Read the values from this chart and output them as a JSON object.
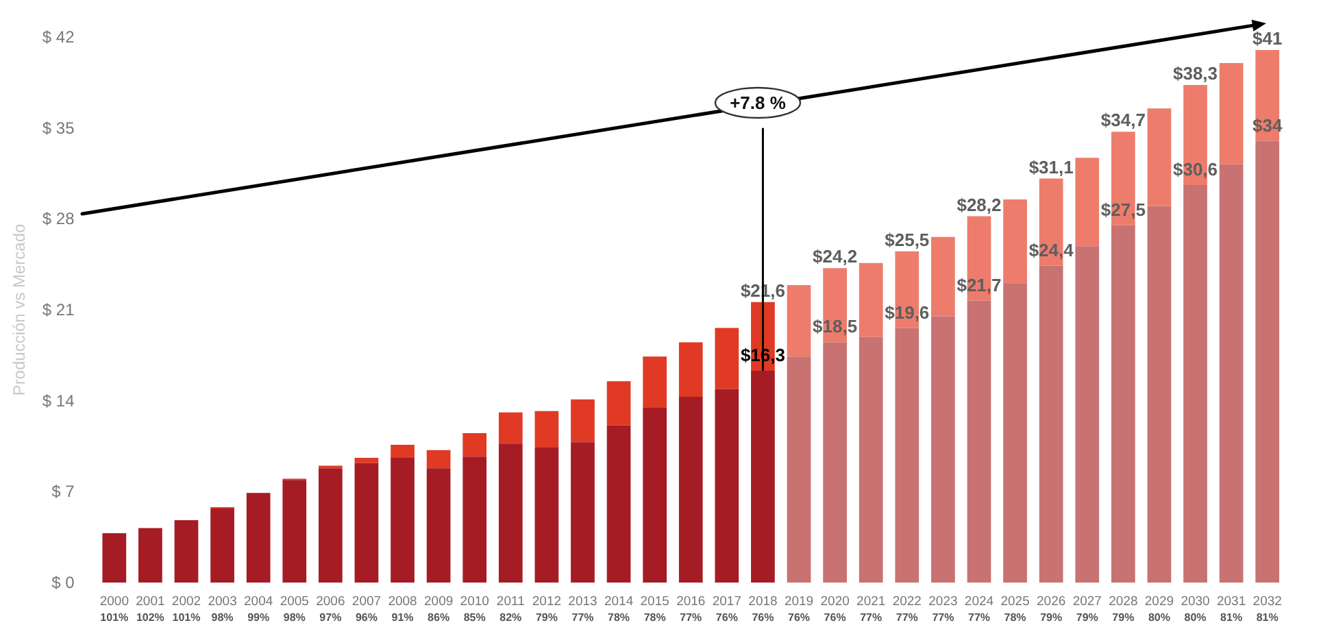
{
  "chart_data": {
    "type": "bar",
    "ylabel": "Producción vs Mercado",
    "categories": [
      "2000\n101%",
      "2001\n102%",
      "2002\n101%",
      "2003\n98%",
      "2004\n99%",
      "2005\n98%",
      "2006\n97%",
      "2007\n96%",
      "2008\n91%",
      "2009\n86%",
      "2010\n85%",
      "2011\n82%",
      "2012\n79%",
      "2013\n77%",
      "2014\n78%",
      "2015\n78%",
      "2016\n77%",
      "2017\n76%",
      "2018\n76%",
      "2019\n76%",
      "2020\n76%",
      "2021\n77%",
      "2022\n77%",
      "2023\n77%",
      "2024\n77%",
      "2025\n78%",
      "2026\n79%",
      "2027\n79%",
      "2028\n79%",
      "2029\n80%",
      "2030\n80%",
      "2031\n81%",
      "2032\n81%"
    ],
    "series": [
      {
        "values": [
          3.8,
          4.2,
          4.8,
          5.7,
          6.9,
          7.9,
          8.8,
          9.2,
          9.6,
          8.8,
          9.7,
          10.7,
          10.4,
          10.8,
          12.1,
          13.5,
          14.3,
          14.9,
          16.3,
          17.4,
          18.5,
          18.9,
          19.6,
          20.5,
          21.7,
          23.0,
          24.4,
          25.9,
          27.5,
          29.0,
          30.6,
          32.2,
          34
        ],
        "colors": [
          "#a51c24",
          "#a51c24",
          "#a51c24",
          "#a51c24",
          "#a51c24",
          "#a51c24",
          "#a51c24",
          "#a51c24",
          "#a51c24",
          "#a51c24",
          "#a51c24",
          "#a51c24",
          "#a51c24",
          "#a51c24",
          "#a51c24",
          "#a51c24",
          "#a51c24",
          "#a51c24",
          "#a51c24",
          "#c87272",
          "#c87272",
          "#c87272",
          "#c87272",
          "#c87272",
          "#c87272",
          "#c87272",
          "#c87272",
          "#c87272",
          "#c87272",
          "#c87272",
          "#c87272",
          "#c87272",
          "#c87272"
        ],
        "value_labels": [
          null,
          null,
          null,
          null,
          null,
          null,
          null,
          null,
          null,
          null,
          null,
          null,
          null,
          null,
          null,
          null,
          null,
          null,
          "$16,3",
          null,
          "$18,5",
          null,
          "$19,6",
          null,
          "$21,7",
          null,
          "$24,4",
          null,
          "$27,5",
          null,
          "$30,6",
          null,
          "$34"
        ]
      },
      {
        "values": [
          null,
          null,
          null,
          0.1,
          null,
          0.1,
          0.2,
          0.4,
          1.0,
          1.4,
          1.8,
          2.4,
          2.8,
          3.3,
          3.4,
          3.9,
          4.2,
          4.7,
          5.3,
          5.5,
          5.7,
          5.7,
          5.9,
          6.1,
          6.5,
          6.5,
          6.7,
          6.8,
          7.2,
          7.5,
          7.7,
          7.8,
          7
        ],
        "colors": [
          "#e03a25",
          "#e03a25",
          "#e03a25",
          "#e03a25",
          "#e03a25",
          "#e03a25",
          "#e03a25",
          "#e03a25",
          "#e03a25",
          "#e03a25",
          "#e03a25",
          "#e03a25",
          "#e03a25",
          "#e03a25",
          "#e03a25",
          "#e03a25",
          "#e03a25",
          "#e03a25",
          "#e03a25",
          "#ee7c6c",
          "#ee7c6c",
          "#ee7c6c",
          "#ee7c6c",
          "#ee7c6c",
          "#ee7c6c",
          "#ee7c6c",
          "#ee7c6c",
          "#ee7c6c",
          "#ee7c6c",
          "#ee7c6c",
          "#ee7c6c",
          "#ee7c6c",
          "#ee7c6c"
        ]
      }
    ],
    "ylim": [
      0,
      42
    ],
    "yticks": [
      {
        "value": 0,
        "label": "$ 0"
      },
      {
        "value": 7,
        "label": "$ 7"
      },
      {
        "value": 14,
        "label": "$ 14"
      },
      {
        "value": 21,
        "label": "$ 21"
      },
      {
        "value": 28,
        "label": "$ 28"
      },
      {
        "value": 35,
        "label": "$ 35"
      },
      {
        "value": 42,
        "label": "$ 42"
      }
    ],
    "ref_lines": [
      {
        "axis": "x",
        "value": "2018\n76%",
        "color": "#000000"
      }
    ],
    "annotations": [
      "+7.8 %"
    ],
    "totals": [
      null,
      null,
      null,
      null,
      null,
      null,
      null,
      null,
      null,
      null,
      null,
      null,
      null,
      null,
      null,
      null,
      null,
      null,
      "$21,6",
      null,
      "$24,2",
      null,
      "$25,5",
      null,
      "$28,2",
      null,
      "$31,1",
      null,
      "$34,7",
      null,
      "$38,3",
      null,
      "$41"
    ],
    "stacked": true,
    "grid": false
  }
}
